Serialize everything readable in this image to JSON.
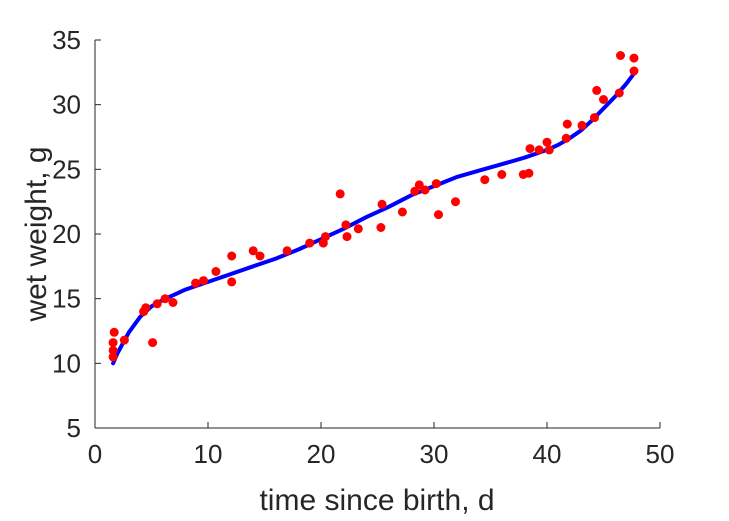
{
  "chart_data": {
    "type": "scatter",
    "title": "",
    "xlabel": "time since birth, d",
    "ylabel": "wet weight, g",
    "xlim": [
      0,
      50
    ],
    "ylim": [
      5,
      35
    ],
    "xticks": [
      0,
      10,
      20,
      30,
      40,
      50
    ],
    "yticks": [
      5,
      10,
      15,
      20,
      25,
      30,
      35
    ],
    "xtick_labels": [
      "0",
      "10",
      "20",
      "30",
      "40",
      "50"
    ],
    "ytick_labels": [
      "5",
      "10",
      "15",
      "20",
      "25",
      "30",
      "35"
    ],
    "grid": false,
    "legend": "none",
    "series": [
      {
        "kind": "scatter",
        "color": "#ff0000",
        "points": [
          [
            1.6,
            10.5
          ],
          [
            1.6,
            11.0
          ],
          [
            1.6,
            11.6
          ],
          [
            1.7,
            12.4
          ],
          [
            2.6,
            11.8
          ],
          [
            4.3,
            14.0
          ],
          [
            4.5,
            14.3
          ],
          [
            5.1,
            11.6
          ],
          [
            5.5,
            14.6
          ],
          [
            6.2,
            15.0
          ],
          [
            6.9,
            14.7
          ],
          [
            8.9,
            16.2
          ],
          [
            9.6,
            16.4
          ],
          [
            10.7,
            17.1
          ],
          [
            12.1,
            18.3
          ],
          [
            12.1,
            16.3
          ],
          [
            14.0,
            18.7
          ],
          [
            14.6,
            18.3
          ],
          [
            17.0,
            18.7
          ],
          [
            19.0,
            19.3
          ],
          [
            20.2,
            19.3
          ],
          [
            20.4,
            19.8
          ],
          [
            21.7,
            23.1
          ],
          [
            22.2,
            20.7
          ],
          [
            22.3,
            19.8
          ],
          [
            23.3,
            20.4
          ],
          [
            25.3,
            20.5
          ],
          [
            25.4,
            22.3
          ],
          [
            27.2,
            21.7
          ],
          [
            28.3,
            23.3
          ],
          [
            28.7,
            23.8
          ],
          [
            29.2,
            23.4
          ],
          [
            30.2,
            23.9
          ],
          [
            30.4,
            21.5
          ],
          [
            31.9,
            22.5
          ],
          [
            34.5,
            24.2
          ],
          [
            36.0,
            24.6
          ],
          [
            37.9,
            24.6
          ],
          [
            38.4,
            24.7
          ],
          [
            38.5,
            26.6
          ],
          [
            39.3,
            26.5
          ],
          [
            40.0,
            27.1
          ],
          [
            40.2,
            26.5
          ],
          [
            41.7,
            27.4
          ],
          [
            41.8,
            28.5
          ],
          [
            43.1,
            28.4
          ],
          [
            44.2,
            29.0
          ],
          [
            44.4,
            31.1
          ],
          [
            45.0,
            30.4
          ],
          [
            46.4,
            30.9
          ],
          [
            46.5,
            33.8
          ],
          [
            47.7,
            33.6
          ],
          [
            47.7,
            32.6
          ]
        ]
      },
      {
        "kind": "line",
        "color": "#0000ff",
        "points": [
          [
            1.6,
            10.0
          ],
          [
            2.0,
            10.8
          ],
          [
            3.0,
            12.4
          ],
          [
            4.0,
            13.6
          ],
          [
            5.0,
            14.4
          ],
          [
            6.0,
            14.9
          ],
          [
            7.0,
            15.3
          ],
          [
            8.0,
            15.7
          ],
          [
            9.0,
            16.0
          ],
          [
            10.0,
            16.3
          ],
          [
            12.0,
            16.9
          ],
          [
            14.0,
            17.5
          ],
          [
            16.0,
            18.1
          ],
          [
            18.0,
            18.8
          ],
          [
            20.0,
            19.6
          ],
          [
            22.0,
            20.4
          ],
          [
            24.0,
            21.3
          ],
          [
            26.0,
            22.1
          ],
          [
            28.0,
            23.0
          ],
          [
            30.0,
            23.7
          ],
          [
            32.0,
            24.4
          ],
          [
            34.0,
            24.9
          ],
          [
            36.0,
            25.4
          ],
          [
            38.0,
            25.9
          ],
          [
            40.0,
            26.5
          ],
          [
            41.0,
            26.9
          ],
          [
            42.0,
            27.4
          ],
          [
            43.0,
            28.0
          ],
          [
            44.0,
            28.8
          ],
          [
            45.0,
            29.7
          ],
          [
            46.0,
            30.6
          ],
          [
            47.0,
            31.6
          ],
          [
            47.7,
            32.4
          ]
        ]
      }
    ]
  }
}
